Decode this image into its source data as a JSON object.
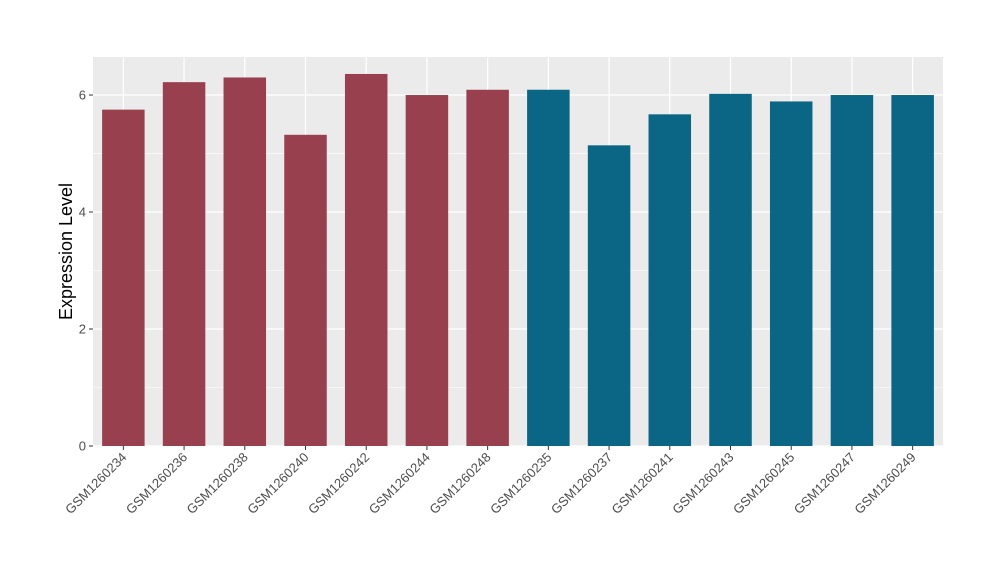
{
  "chart_data": {
    "type": "bar",
    "title": "",
    "xlabel": "",
    "ylabel": "Expression Level",
    "ylim": [
      0,
      6.65
    ],
    "yticks": [
      0,
      2,
      4,
      6
    ],
    "grid": true,
    "legend": "none",
    "panel_background": "#ebebeb",
    "gridline_color": "#ffffff",
    "categories": [
      "GSM1260234",
      "GSM1260236",
      "GSM1260238",
      "GSM1260240",
      "GSM1260242",
      "GSM1260244",
      "GSM1260248",
      "GSM1260235",
      "GSM1260237",
      "GSM1260241",
      "GSM1260243",
      "GSM1260245",
      "GSM1260247",
      "GSM1260249"
    ],
    "values": [
      5.75,
      6.22,
      6.3,
      5.32,
      6.36,
      6.0,
      6.09,
      6.09,
      5.14,
      5.67,
      6.02,
      5.89,
      6.0,
      6.0
    ],
    "bar_colors": [
      "#99404f",
      "#99404f",
      "#99404f",
      "#99404f",
      "#99404f",
      "#99404f",
      "#99404f",
      "#0b6584",
      "#0b6584",
      "#0b6584",
      "#0b6584",
      "#0b6584",
      "#0b6584",
      "#0b6584"
    ]
  }
}
